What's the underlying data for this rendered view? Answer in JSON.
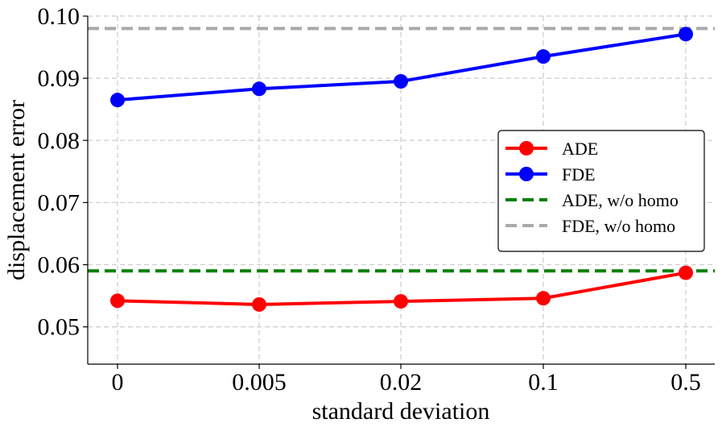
{
  "chart_data": {
    "type": "line",
    "categories": [
      "0",
      "0.005",
      "0.02",
      "0.1",
      "0.5"
    ],
    "xlabel": "standard deviation",
    "ylabel": "displacement error",
    "ylim": [
      0.044,
      0.1
    ],
    "yticks": [
      "0.05",
      "0.06",
      "0.07",
      "0.08",
      "0.09",
      "0.10"
    ],
    "grid": true,
    "legend_position": "center-right",
    "series": [
      {
        "name": "ADE",
        "color": "#ff0000",
        "marker": "circle",
        "style": "solid",
        "values": [
          0.0542,
          0.0536,
          0.0541,
          0.0546,
          0.0587
        ]
      },
      {
        "name": "FDE",
        "color": "#0000ff",
        "marker": "circle",
        "style": "solid",
        "values": [
          0.0865,
          0.0883,
          0.0895,
          0.0935,
          0.0971
        ]
      }
    ],
    "reference_lines": [
      {
        "name": "ADE, w/o homo",
        "value": 0.059,
        "color": "#008000",
        "style": "dashed"
      },
      {
        "name": "FDE, w/o homo",
        "value": 0.098,
        "color": "#a9a9a9",
        "style": "dashed"
      }
    ]
  }
}
